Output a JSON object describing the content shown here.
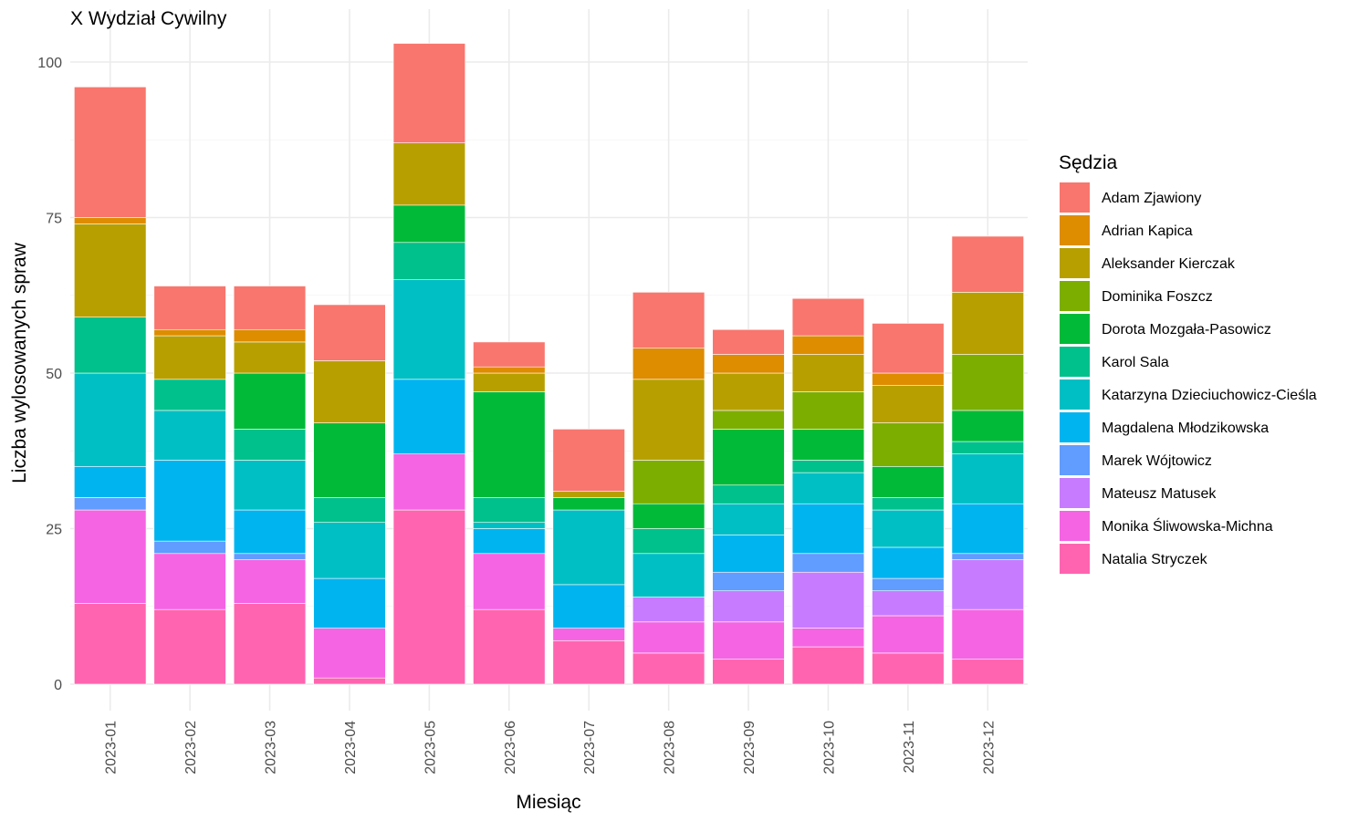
{
  "chart_data": {
    "type": "bar",
    "stacked": true,
    "title": "X Wydział Cywilny",
    "xlabel": "Miesiąc",
    "ylabel": "Liczba wylosowanych spraw",
    "legend_title": "Sędzia",
    "legend_position": "right",
    "grid": true,
    "ylim": [
      0,
      103
    ],
    "yticks": [
      0,
      25,
      50,
      75,
      100
    ],
    "categories": [
      "2023-01",
      "2023-02",
      "2023-03",
      "2023-04",
      "2023-05",
      "2023-06",
      "2023-07",
      "2023-08",
      "2023-09",
      "2023-10",
      "2023-11",
      "2023-12"
    ],
    "series": [
      {
        "name": "Adam Zjawiony",
        "color": "#F8766D",
        "values": [
          21,
          7,
          7,
          9,
          16,
          4,
          10,
          9,
          4,
          6,
          8,
          9
        ]
      },
      {
        "name": "Adrian Kapica",
        "color": "#DE8C00",
        "values": [
          1,
          1,
          2,
          0,
          0,
          1,
          0,
          5,
          3,
          3,
          2,
          0
        ]
      },
      {
        "name": "Aleksander Kierczak",
        "color": "#B79F00",
        "values": [
          15,
          7,
          5,
          10,
          10,
          3,
          1,
          13,
          6,
          6,
          6,
          10
        ]
      },
      {
        "name": "Dominika Foszcz",
        "color": "#7CAE00",
        "values": [
          0,
          0,
          0,
          0,
          0,
          0,
          0,
          7,
          3,
          6,
          7,
          9
        ]
      },
      {
        "name": "Dorota Mozgała-Pasowicz",
        "color": "#00BA38",
        "values": [
          0,
          0,
          9,
          12,
          6,
          17,
          2,
          4,
          9,
          5,
          5,
          5
        ]
      },
      {
        "name": "Karol Sala",
        "color": "#00C08B",
        "values": [
          9,
          5,
          5,
          4,
          6,
          4,
          0,
          4,
          3,
          2,
          2,
          2
        ]
      },
      {
        "name": "Katarzyna Dzieciuchowicz-Cieśla",
        "color": "#00BFC4",
        "values": [
          15,
          8,
          8,
          9,
          16,
          1,
          12,
          7,
          5,
          5,
          6,
          8
        ]
      },
      {
        "name": "Magdalena Młodzikowska",
        "color": "#00B4F0",
        "values": [
          5,
          13,
          7,
          8,
          12,
          4,
          7,
          0,
          6,
          8,
          5,
          8
        ]
      },
      {
        "name": "Marek Wójtowicz",
        "color": "#619CFF",
        "values": [
          2,
          2,
          1,
          0,
          0,
          0,
          0,
          0,
          3,
          3,
          2,
          1
        ]
      },
      {
        "name": "Mateusz Matusek",
        "color": "#C77CFF",
        "values": [
          0,
          0,
          0,
          0,
          0,
          0,
          0,
          4,
          5,
          9,
          4,
          8
        ]
      },
      {
        "name": "Monika Śliwowska-Michna",
        "color": "#F564E3",
        "values": [
          15,
          9,
          7,
          8,
          9,
          9,
          2,
          5,
          6,
          3,
          6,
          8
        ]
      },
      {
        "name": "Natalia Stryczek",
        "color": "#FF64B0",
        "values": [
          13,
          12,
          13,
          1,
          28,
          12,
          7,
          5,
          4,
          6,
          5,
          4
        ]
      }
    ]
  }
}
